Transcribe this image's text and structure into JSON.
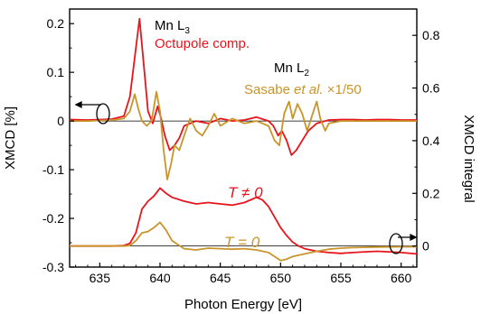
{
  "chart_data": {
    "type": "line",
    "xlabel": "Photon Energy [eV]",
    "ylabel_left": "XMCD [%]",
    "ylabel_right": "XMCD integral",
    "xlim": [
      632.5,
      661.3
    ],
    "ylim_left": [
      -0.3,
      0.23
    ],
    "ylim_right": [
      -0.08,
      0.9
    ],
    "x_ticks": [
      635,
      640,
      645,
      650,
      655,
      660
    ],
    "y_ticks_left": [
      0.2,
      0.1,
      0,
      -0.1,
      -0.2,
      -0.3
    ],
    "y_ticks_right": [
      0.8,
      0.6,
      0.4,
      0.2,
      0
    ],
    "annotations": {
      "mn_l3": "Mn L",
      "mn_l3_sub": "3",
      "octupole": "Octupole comp.",
      "mn_l2": "Mn L",
      "mn_l2_sub": "2",
      "sasabe_a": "Sasabe ",
      "sasabe_b": "et al.",
      "sasabe_c": " ×1/50",
      "t_neq": "T ≠ 0",
      "t_eq": "T = 0"
    },
    "colors": {
      "red": "#e8141c",
      "gold": "#c9952a",
      "black": "#000000"
    },
    "series": [
      {
        "axis": "left",
        "color": "#e8141c",
        "x": [
          632.5,
          634,
          636,
          637,
          637.5,
          638,
          638.3,
          638.6,
          639,
          639.4,
          639.8,
          640.1,
          640.4,
          640.8,
          641.2,
          641.6,
          642,
          643,
          644,
          645,
          646,
          647,
          648,
          649,
          649.4,
          649.8,
          650.1,
          650.5,
          650.9,
          651.3,
          651.8,
          652.3,
          653,
          654,
          655,
          656,
          657,
          658,
          659,
          660,
          661.3
        ],
        "y": [
          0.003,
          0.002,
          0.004,
          0.01,
          0.05,
          0.15,
          0.21,
          0.13,
          0.02,
          -0.005,
          0.03,
          0.005,
          -0.03,
          -0.06,
          -0.05,
          -0.035,
          -0.01,
          0.0,
          -0.005,
          0.005,
          0.0,
          0.002,
          0.008,
          0.0,
          -0.01,
          -0.03,
          -0.02,
          -0.04,
          -0.07,
          -0.06,
          -0.04,
          -0.02,
          -0.005,
          0.002,
          0.003,
          0.003,
          0.002,
          0.003,
          0.003,
          0.002,
          0.002
        ]
      },
      {
        "axis": "left",
        "color": "#c9952a",
        "x": [
          632.5,
          634,
          636,
          637,
          637.5,
          637.9,
          638.2,
          638.5,
          638.9,
          639.3,
          639.7,
          640.0,
          640.3,
          640.6,
          640.9,
          641.2,
          641.6,
          642.0,
          642.5,
          643,
          643.5,
          644,
          644.5,
          645,
          646,
          647,
          648,
          649,
          649.5,
          649.9,
          650.3,
          650.7,
          651.0,
          651.4,
          651.8,
          652.2,
          652.6,
          653,
          653.3,
          653.7,
          654,
          655,
          656,
          658,
          661.3
        ],
        "y": [
          0.0,
          0.0,
          0.002,
          0.005,
          0.02,
          0.055,
          0.025,
          0.0,
          -0.01,
          0.0,
          0.06,
          0.02,
          -0.06,
          -0.12,
          -0.09,
          -0.05,
          -0.06,
          -0.03,
          0.005,
          -0.02,
          -0.03,
          -0.01,
          0.015,
          -0.01,
          0.005,
          -0.005,
          0.0,
          -0.01,
          -0.04,
          -0.05,
          0.015,
          0.04,
          0.005,
          0.035,
          0.015,
          -0.02,
          0.01,
          0.04,
          0.005,
          -0.02,
          -0.005,
          0.0,
          0.0,
          0.0,
          0.0
        ]
      },
      {
        "axis": "right",
        "color": "#e8141c",
        "x": [
          632.5,
          634,
          636,
          637,
          637.5,
          638,
          638.5,
          639,
          639.5,
          640,
          640.5,
          641,
          642,
          643,
          644,
          645,
          646,
          647,
          648,
          648.5,
          649,
          649.5,
          650,
          650.5,
          651,
          651.5,
          652,
          653,
          654,
          655,
          656,
          657,
          658,
          659,
          660,
          661.3
        ],
        "y": [
          0.0,
          0.0,
          0.0,
          0.002,
          0.01,
          0.05,
          0.14,
          0.17,
          0.19,
          0.22,
          0.2,
          0.185,
          0.17,
          0.16,
          0.165,
          0.16,
          0.155,
          0.165,
          0.185,
          0.175,
          0.15,
          0.11,
          0.07,
          0.04,
          0.015,
          0.0,
          -0.01,
          -0.02,
          -0.025,
          -0.028,
          -0.025,
          -0.022,
          -0.02,
          -0.022,
          -0.025,
          -0.03
        ]
      },
      {
        "axis": "right",
        "color": "#c9952a",
        "x": [
          632.5,
          634,
          636,
          637,
          637.5,
          638,
          638.5,
          639,
          639.5,
          640,
          640.5,
          641,
          641.5,
          642,
          643,
          644,
          645,
          646,
          647,
          648,
          649,
          649.5,
          650,
          650.5,
          651,
          652,
          653,
          654,
          655,
          656,
          657,
          658,
          660,
          661.3
        ],
        "y": [
          0.0,
          0.0,
          0.0,
          0.0,
          0.002,
          0.02,
          0.05,
          0.055,
          0.07,
          0.09,
          0.06,
          0.02,
          0.005,
          -0.01,
          -0.015,
          -0.008,
          -0.01,
          -0.012,
          -0.01,
          -0.015,
          -0.025,
          -0.04,
          -0.055,
          -0.05,
          -0.04,
          -0.03,
          -0.02,
          -0.012,
          -0.008,
          -0.006,
          -0.005,
          -0.004,
          -0.003,
          -0.003
        ]
      }
    ]
  }
}
